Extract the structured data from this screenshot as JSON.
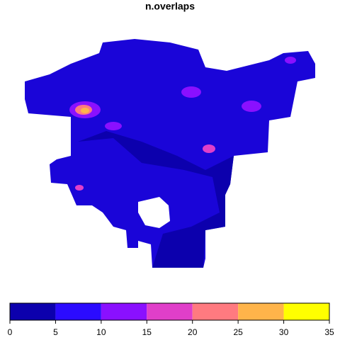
{
  "title": "n.overlaps",
  "legend": {
    "lim": [
      0,
      35
    ],
    "ticks": [
      0,
      5,
      10,
      15,
      20,
      25,
      30,
      35
    ],
    "colors": [
      "#0c00ad",
      "#2b0bff",
      "#8a10ff",
      "#e03fc9",
      "#ff7a80",
      "#ffb44a",
      "#ffff00"
    ]
  }
}
